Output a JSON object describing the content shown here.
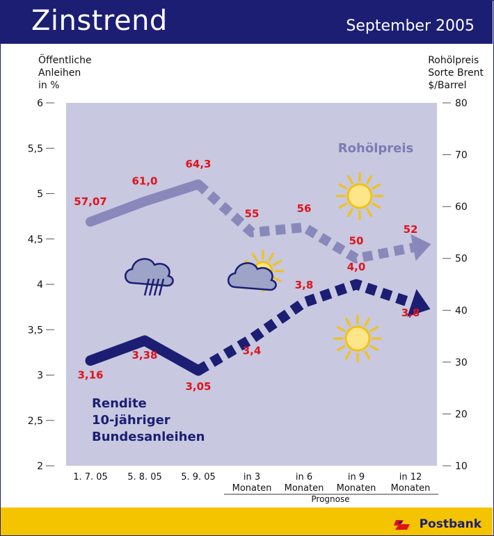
{
  "header": {
    "title": "Zinstrend",
    "date": "September 2005"
  },
  "left_axis_title": [
    "Öffentliche",
    "Anleihen",
    "in %"
  ],
  "right_axis_title": [
    "Rohölpreis",
    "Sorte Brent",
    "$/Barrel"
  ],
  "footer": {
    "brand": "Postbank"
  },
  "colors": {
    "header": "#1b1e73",
    "plot_bg": "#c8c8e0",
    "bond_series": "#1b1e73",
    "oil_series": "#8888bb",
    "labels": "#e0131b",
    "footer": "#f5c400"
  },
  "icons": [
    "rain-cloud-icon",
    "sun-behind-cloud-icon",
    "sun-icon",
    "sun-icon"
  ],
  "chart_data": {
    "type": "line",
    "categories": [
      "1. 7. 05",
      "5. 8. 05",
      "5. 9. 05",
      "in 3\nMonaten",
      "in 6\nMonaten",
      "in 9\nMonaten",
      "in 12\nMonaten"
    ],
    "category_group_label": "Prognose",
    "left_axis": {
      "ylim": [
        2,
        6
      ],
      "ticks": [
        "2",
        "2,5",
        "3",
        "3,5",
        "4",
        "4,5",
        "5",
        "5,5",
        "6"
      ]
    },
    "right_axis": {
      "ylim": [
        10,
        80
      ],
      "ticks": [
        "10",
        "20",
        "30",
        "40",
        "50",
        "60",
        "70",
        "80"
      ]
    },
    "series": [
      {
        "name": "Rendite\n10-jähriger\nBundesanleihen",
        "axis": "left",
        "values": [
          3.16,
          3.38,
          3.05,
          3.4,
          3.8,
          4.0,
          3.8
        ],
        "labels": [
          "3,16",
          "3,38",
          "3,05",
          "3,4",
          "3,8",
          "4,0",
          "3,8"
        ],
        "actual_count": 3
      },
      {
        "name": "Rohölpreis",
        "axis": "right",
        "values": [
          57.07,
          61.0,
          64.3,
          55,
          56,
          50,
          52
        ],
        "labels": [
          "57,07",
          "61,0",
          "64,3",
          "55",
          "56",
          "50",
          "52"
        ],
        "actual_count": 3
      }
    ]
  }
}
